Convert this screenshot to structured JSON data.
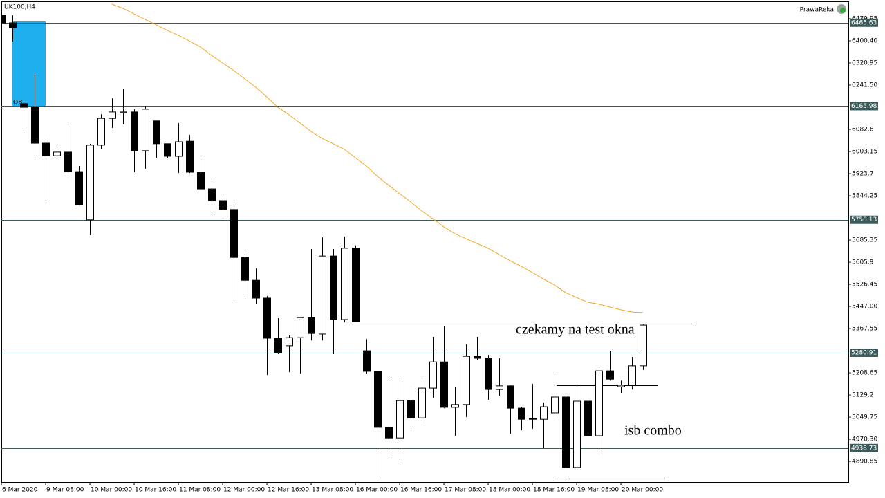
{
  "chart_data": {
    "type": "candlestick",
    "title": "UK100,H4",
    "brand": "PrawaReka",
    "categories": [
      "6 Mar 2020",
      null,
      null,
      null,
      "9 Mar 08:00",
      null,
      null,
      null,
      "10 Mar 00:00",
      null,
      null,
      null,
      "10 Mar 16:00",
      null,
      null,
      null,
      "11 Mar 08:00",
      null,
      null,
      null,
      "12 Mar 00:00",
      null,
      null,
      null,
      "12 Mar 16:00",
      null,
      null,
      null,
      "13 Mar 08:00",
      null,
      null,
      null,
      "16 Mar 00:00",
      null,
      null,
      null,
      "16 Mar 16:00",
      null,
      null,
      null,
      "17 Mar 08:00",
      null,
      null,
      null,
      "18 Mar 00:00",
      null,
      null,
      null,
      "18 Mar 16:00",
      null,
      null,
      null,
      "19 Mar 08:00",
      null,
      null,
      null,
      "20 Mar 00:00",
      null,
      null
    ],
    "open": [
      6492,
      6465,
      6175,
      6162,
      6033,
      5988,
      6001,
      5931,
      5758,
      6026,
      6122,
      6142,
      6145,
      6006,
      6113,
      6031,
      5986,
      6040,
      5929,
      5869,
      5827,
      5795,
      5623,
      5541,
      5477,
      5333,
      5306,
      5335,
      5407,
      5348,
      5628,
      5400,
      5656,
      5288,
      5214,
      5013,
      4975,
      5109,
      5047,
      5154,
      5248,
      5085,
      5095,
      5268,
      5261,
      5149,
      5162,
      5082,
      5045,
      5042,
      5065,
      5122,
      4869,
      5107,
      4983,
      5216,
      5159,
      5164,
      5234
    ],
    "high": [
      6497,
      6492,
      6180,
      6286,
      6070,
      6026,
      6093,
      5951,
      6031,
      6137,
      6194,
      6229,
      6155,
      6167,
      6113,
      6031,
      6105,
      6063,
      5981,
      5897,
      5844,
      5815,
      5636,
      5584,
      5484,
      5405,
      5343,
      5410,
      5653,
      5695,
      5653,
      5698,
      5666,
      5330,
      5214,
      5194,
      5191,
      5157,
      5181,
      5338,
      5375,
      5157,
      5311,
      5338,
      5273,
      5261,
      5164,
      5087,
      5169,
      5102,
      5204,
      5132,
      5164,
      5137,
      5224,
      5286,
      5181,
      5266,
      5383
    ],
    "low": [
      6463,
      6398,
      6075,
      5988,
      5827,
      5981,
      5911,
      5810,
      5703,
      6013,
      6088,
      6100,
      5929,
      5941,
      5981,
      5981,
      5926,
      5926,
      5869,
      5775,
      5762,
      5467,
      5479,
      5455,
      5201,
      5276,
      5211,
      5206,
      5325,
      5325,
      5276,
      5390,
      5390,
      5206,
      4834,
      4916,
      4896,
      5015,
      5028,
      5119,
      5082,
      4983,
      5050,
      5256,
      5112,
      5127,
      4990,
      5003,
      5008,
      4938,
      5052,
      4826,
      4866,
      4938,
      4918,
      5181,
      5137,
      5149,
      5219
    ],
    "close": [
      6465,
      6448,
      6162,
      6033,
      5988,
      6001,
      5931,
      5812,
      6026,
      6122,
      6145,
      6145,
      6006,
      6155,
      6031,
      5986,
      6038,
      5929,
      5869,
      5827,
      5795,
      5623,
      5541,
      5477,
      5333,
      5281,
      5335,
      5407,
      5350,
      5628,
      5400,
      5656,
      5392,
      5214,
      5013,
      4975,
      5109,
      5047,
      5154,
      5248,
      5085,
      5095,
      5268,
      5261,
      5149,
      5162,
      5082,
      5042,
      5042,
      5087,
      5122,
      4869,
      5107,
      4983,
      5216,
      5186,
      5164,
      5234,
      5380
    ],
    "up_color": "#ffffff",
    "down_color": "#000000",
    "moving_average": {
      "color": "#f5a623",
      "values": [
        null,
        null,
        null,
        null,
        null,
        null,
        null,
        null,
        null,
        null,
        6532,
        6517,
        6497,
        6477,
        6458,
        6438,
        6420,
        6400,
        6378,
        6348,
        6321,
        6294,
        6264,
        6234,
        6199,
        6162,
        6135,
        6105,
        6075,
        6050,
        6031,
        6011,
        5981,
        5951,
        5914,
        5882,
        5852,
        5822,
        5790,
        5762,
        5733,
        5708,
        5690,
        5673,
        5656,
        5633,
        5611,
        5591,
        5569,
        5546,
        5524,
        5497,
        5479,
        5462,
        5455,
        5445,
        5435,
        5427,
        5425
      ]
    },
    "ylim": [
      4816.6,
      6539.5
    ],
    "yticks": [
      6479.95,
      {
        "value": 6400.4,
        "label": "6400.40"
      },
      6320.95,
      {
        "value": 6241.5,
        "label": "6241.50"
      },
      6082.6,
      6003.15,
      5923.7,
      5844.25,
      5685.35,
      5605.9,
      5526.45,
      {
        "value": 5447,
        "label": "5447.00"
      },
      5367.55,
      5208.65,
      5129.2,
      5049.75,
      {
        "value": 4970.3,
        "label": "4970.30"
      },
      4890.85
    ],
    "levels": [
      6465.63,
      6165.98,
      5758.13,
      5280.91,
      4938.73
    ],
    "level_color": "#3d5a5a",
    "lines": [
      5392,
      5163,
      4829
    ],
    "zone": {
      "label": "OB",
      "high": 6470,
      "low": 6165,
      "color": "#1eb0ee"
    },
    "annotations": [
      "czekamy na test okna",
      "isb combo"
    ]
  }
}
